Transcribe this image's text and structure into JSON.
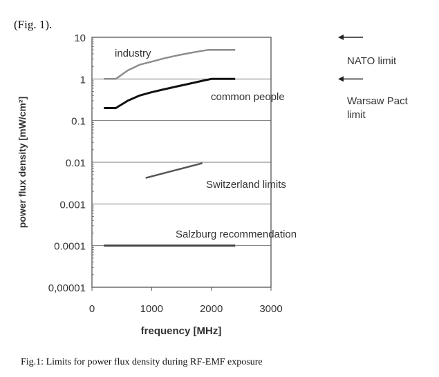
{
  "intro_text": "(Fig. 1).",
  "caption": "Fig.1: Limits for power flux density during RF-EMF exposure",
  "chart_data": {
    "type": "line",
    "title": "",
    "xlabel": "frequency [MHz]",
    "ylabel": "power flux density  [mW/cm²]",
    "xlim": [
      0,
      3000
    ],
    "ylim": [
      1e-05,
      10
    ],
    "yscale": "log",
    "grid": "horizontal at decades",
    "x_ticks": [
      0,
      1000,
      2000,
      3000
    ],
    "x_tick_labels": [
      "0",
      "1000",
      "2000",
      "3000"
    ],
    "y_ticks": [
      10,
      1,
      0.1,
      0.01,
      0.001,
      0.0001,
      1e-05
    ],
    "y_tick_labels": [
      "10",
      "1",
      "0.1",
      "0.01",
      "0.001",
      "0.0001",
      "0,00001"
    ],
    "series": [
      {
        "name": "industry",
        "color": "#8c8c8c",
        "x": [
          200,
          400,
          600,
          800,
          1000,
          1200,
          1400,
          1600,
          1800,
          1950,
          2400
        ],
        "y": [
          1,
          1,
          1.6,
          2.2,
          2.6,
          3.1,
          3.6,
          4.1,
          4.6,
          5,
          5
        ]
      },
      {
        "name": "common people",
        "color": "#111111",
        "x": [
          200,
          400,
          600,
          800,
          1000,
          1200,
          1400,
          1600,
          1800,
          2000,
          2400
        ],
        "y": [
          0.2,
          0.2,
          0.3,
          0.4,
          0.48,
          0.56,
          0.65,
          0.75,
          0.87,
          1,
          1
        ]
      },
      {
        "name": "Switzerland limits",
        "color": "#555555",
        "x": [
          900,
          1850
        ],
        "y": [
          0.0042,
          0.0095
        ]
      },
      {
        "name": "Salzburg  recommendation",
        "color": "#444444",
        "x": [
          200,
          2400
        ],
        "y": [
          0.0001,
          0.0001
        ]
      }
    ],
    "annotations": [
      {
        "text": "NATO limit",
        "arrow_at_y": 10
      },
      {
        "text": "Warsaw Pact",
        "text2": "limit",
        "arrow_at_y": 1
      }
    ]
  }
}
